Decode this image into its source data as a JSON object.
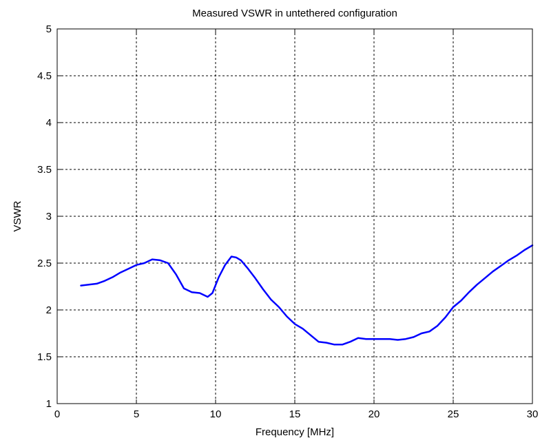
{
  "chart_data": {
    "type": "line",
    "title": "Measured VSWR in untethered configuration",
    "xlabel": "Frequency [MHz]",
    "ylabel": "VSWR",
    "xlim": [
      0,
      30
    ],
    "ylim": [
      1,
      5
    ],
    "xticks": [
      0,
      5,
      10,
      15,
      20,
      25,
      30
    ],
    "yticks": [
      1,
      1.5,
      2,
      2.5,
      3,
      3.5,
      4,
      4.5,
      5
    ],
    "xtick_labels": [
      "0",
      "5",
      "10",
      "15",
      "20",
      "25",
      "30"
    ],
    "ytick_labels": [
      "1",
      "1.5",
      "2",
      "2.5",
      "3",
      "3.5",
      "4",
      "4.5",
      "5"
    ],
    "grid": true,
    "series": [
      {
        "color": "#0000ff",
        "x": [
          1.5,
          2.0,
          2.5,
          3.0,
          3.5,
          4.0,
          4.5,
          5.0,
          5.5,
          6.0,
          6.5,
          7.0,
          7.5,
          8.0,
          8.5,
          9.0,
          9.5,
          9.8,
          10.2,
          10.6,
          11.0,
          11.3,
          11.6,
          12.0,
          12.5,
          13.0,
          13.5,
          14.0,
          14.5,
          15.0,
          15.5,
          16.0,
          16.5,
          17.0,
          17.5,
          18.0,
          18.5,
          19.0,
          19.5,
          20.0,
          20.5,
          21.0,
          21.5,
          22.0,
          22.5,
          23.0,
          23.5,
          24.0,
          24.5,
          25.0,
          25.5,
          26.0,
          26.5,
          27.0,
          27.5,
          28.0,
          28.5,
          29.0,
          29.5,
          30.0
        ],
        "y": [
          2.26,
          2.27,
          2.28,
          2.31,
          2.35,
          2.4,
          2.44,
          2.48,
          2.5,
          2.54,
          2.53,
          2.5,
          2.38,
          2.23,
          2.19,
          2.18,
          2.14,
          2.18,
          2.35,
          2.48,
          2.57,
          2.56,
          2.53,
          2.45,
          2.34,
          2.22,
          2.11,
          2.03,
          1.93,
          1.85,
          1.8,
          1.73,
          1.66,
          1.65,
          1.63,
          1.63,
          1.66,
          1.7,
          1.69,
          1.69,
          1.69,
          1.69,
          1.68,
          1.69,
          1.71,
          1.75,
          1.77,
          1.83,
          1.92,
          2.03,
          2.1,
          2.19,
          2.27,
          2.34,
          2.41,
          2.47,
          2.53,
          2.58,
          2.64,
          2.69
        ]
      }
    ]
  }
}
